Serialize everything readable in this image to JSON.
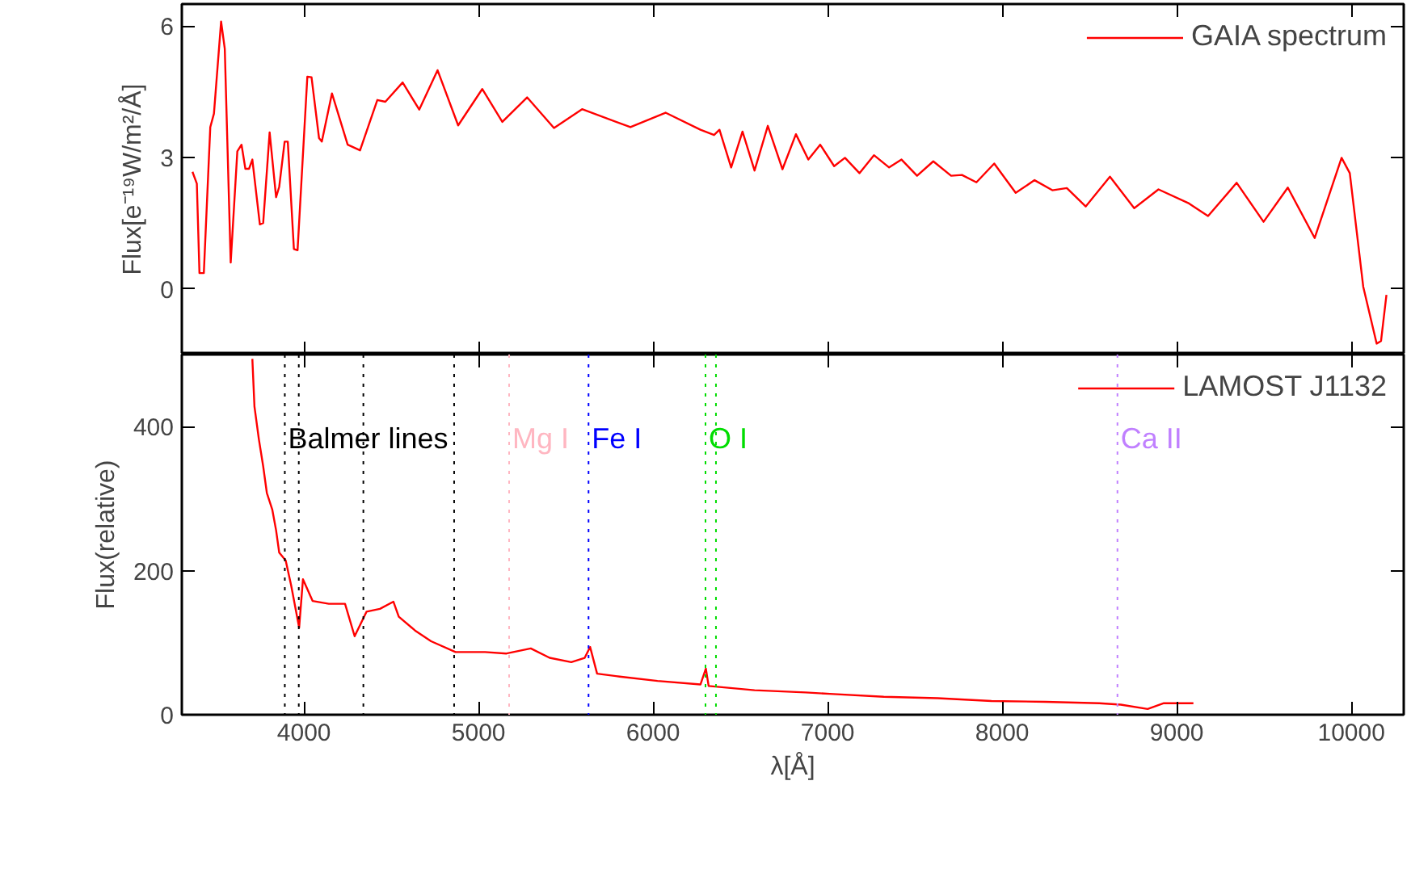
{
  "chart_data": [
    {
      "type": "line",
      "ylabel": "Flux[e⁻¹⁹W/m²/Å]",
      "xlim": [
        3300,
        10300
      ],
      "xticks": [
        4000,
        5000,
        6000,
        7000,
        8000,
        9000,
        10000
      ],
      "ylim": [
        -1.5,
        6.5
      ],
      "yticks": [
        0,
        3,
        6
      ],
      "tick_labels": "y",
      "grid": false,
      "legend": "top right",
      "marker": "none",
      "line_style": "solid",
      "series": [
        {
          "name": "GAIA spectrum",
          "color": "#ff0000",
          "x": [
            3361,
            3386,
            3401,
            3426,
            3463,
            3484,
            3525,
            3546,
            3580,
            3618,
            3642,
            3664,
            3685,
            3704,
            3747,
            3766,
            3803,
            3840,
            3858,
            3889,
            3907,
            3942,
            3963,
            4019,
            4043,
            4086,
            4102,
            4160,
            4250,
            4321,
            4420,
            4466,
            4565,
            4660,
            4765,
            4883,
            5021,
            5136,
            5278,
            5432,
            5593,
            5870,
            6071,
            6271,
            6349,
            6380,
            6447,
            6512,
            6581,
            6657,
            6741,
            6818,
            6889,
            6957,
            7037,
            7099,
            7182,
            7265,
            7352,
            7423,
            7512,
            7605,
            7707,
            7769,
            7852,
            7954,
            8077,
            8185,
            8287,
            8370,
            8478,
            8617,
            8756,
            8895,
            9065,
            9179,
            9343,
            9497,
            9636,
            9790,
            9944,
            9991,
            10068,
            10145,
            10170,
            10201
          ],
          "values": [
            2.67,
            2.4,
            0.36,
            0.36,
            3.69,
            4.0,
            6.1,
            5.48,
            0.6,
            3.14,
            3.29,
            2.74,
            2.74,
            2.95,
            1.47,
            1.5,
            3.57,
            2.09,
            2.33,
            3.36,
            3.36,
            0.91,
            0.88,
            4.84,
            4.83,
            3.44,
            3.36,
            4.46,
            3.29,
            3.16,
            4.31,
            4.27,
            4.71,
            4.09,
            4.99,
            3.73,
            4.56,
            3.81,
            4.37,
            3.67,
            4.1,
            3.69,
            4.02,
            3.63,
            3.51,
            3.63,
            2.77,
            3.59,
            2.7,
            3.72,
            2.73,
            3.53,
            2.95,
            3.29,
            2.8,
            2.99,
            2.64,
            3.05,
            2.77,
            2.95,
            2.58,
            2.91,
            2.58,
            2.6,
            2.43,
            2.86,
            2.19,
            2.48,
            2.25,
            2.3,
            1.88,
            2.56,
            1.84,
            2.27,
            1.96,
            1.66,
            2.42,
            1.53,
            2.31,
            1.16,
            2.99,
            2.64,
            0.05,
            -1.25,
            -1.19,
            -0.14
          ]
        }
      ]
    },
    {
      "type": "line",
      "xlabel": "λ[Å]",
      "ylabel": "Flux(relative)",
      "xlim": [
        3300,
        10300
      ],
      "xticks": [
        4000,
        5000,
        6000,
        7000,
        8000,
        9000,
        10000
      ],
      "ylim": [
        0,
        500
      ],
      "yticks": [
        0,
        200,
        400
      ],
      "grid": false,
      "legend": "top right",
      "marker": "none",
      "line_style": "solid",
      "series": [
        {
          "name": "LAMOST J1132",
          "color": "#ff0000",
          "x": [
            3704,
            3716,
            3741,
            3766,
            3787,
            3818,
            3840,
            3858,
            3895,
            3926,
            3972,
            3994,
            4049,
            4142,
            4235,
            4290,
            4358,
            4435,
            4512,
            4543,
            4636,
            4728,
            4868,
            5037,
            5160,
            5299,
            5407,
            5531,
            5608,
            5639,
            5679,
            5808,
            6025,
            6271,
            6302,
            6318,
            6581,
            6873,
            7012,
            7321,
            7630,
            7938,
            8247,
            8556,
            8679,
            8833,
            8926,
            9095
          ],
          "values": [
            494,
            428,
            383,
            345,
            308,
            285,
            256,
            225,
            214,
            180,
            121,
            188,
            158,
            154,
            154,
            109,
            143,
            147,
            157,
            136,
            117,
            102,
            87,
            87,
            85,
            92,
            79,
            73,
            79,
            94,
            57,
            53,
            47,
            42,
            64,
            40,
            34,
            31,
            29,
            25,
            23,
            19,
            18,
            16,
            14,
            8,
            16,
            16
          ]
        }
      ],
      "ref_lines": [
        {
          "axis": "x",
          "value": 3890,
          "label": "Balmer lines",
          "color": "#000000",
          "line_style": "dotted"
        },
        {
          "axis": "x",
          "value": 3970,
          "label": null,
          "color": "#000000",
          "line_style": "dotted"
        },
        {
          "axis": "x",
          "value": 4340,
          "label": null,
          "color": "#000000",
          "line_style": "dotted"
        },
        {
          "axis": "x",
          "value": 4860,
          "label": null,
          "color": "#000000",
          "line_style": "dotted"
        },
        {
          "axis": "x",
          "value": 5175,
          "label": "Mg I",
          "color": "#ffb6c1",
          "line_style": "dotted"
        },
        {
          "axis": "x",
          "value": 5630,
          "label": "Fe I",
          "color": "#0000ff",
          "line_style": "dotted"
        },
        {
          "axis": "x",
          "value": 6300,
          "label": "O I",
          "color": "#00dd00",
          "line_style": "dotted"
        },
        {
          "axis": "x",
          "value": 6360,
          "label": null,
          "color": "#00dd00",
          "line_style": "dotted"
        },
        {
          "axis": "x",
          "value": 8660,
          "label": "Ca II",
          "color": "#c080ff",
          "line_style": "dotted"
        }
      ]
    }
  ]
}
